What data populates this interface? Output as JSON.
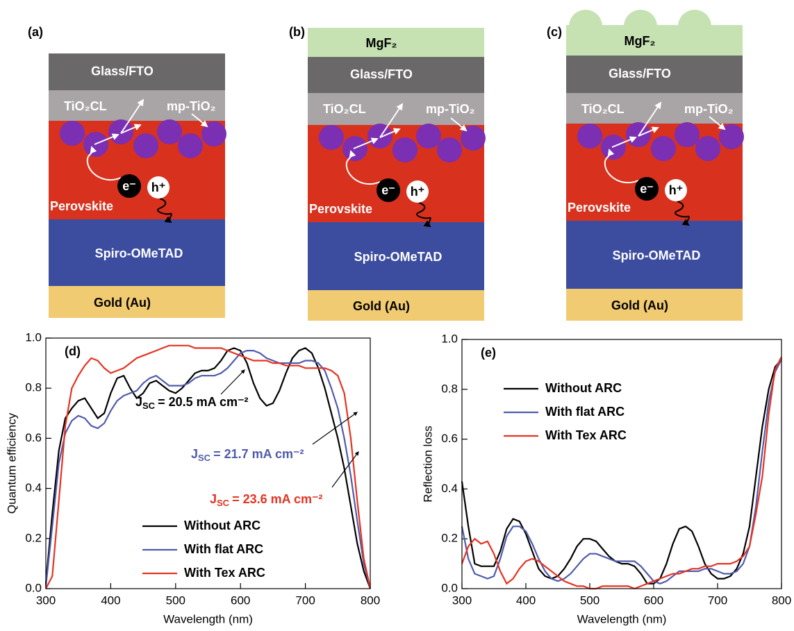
{
  "diagrams": [
    {
      "label": "(a)",
      "glass": "Glass/FTO",
      "compact": "TiO₂CL",
      "mesoporous": "mp-TiO₂",
      "absorber": "Perovskite",
      "htl": "Spiro-OMeTAD",
      "contact": "Gold (Au)",
      "electron": "e⁻",
      "hole": "h⁺"
    },
    {
      "label": "(b)",
      "coating": "MgF₂",
      "glass": "Glass/FTO",
      "compact": "TiO₂CL",
      "mesoporous": "mp-TiO₂",
      "absorber": "Perovskite",
      "htl": "Spiro-OMeTAD",
      "contact": "Gold (Au)",
      "electron": "e⁻",
      "hole": "h⁺"
    },
    {
      "label": "(c)",
      "coating": "MgF₂",
      "glass": "Glass/FTO",
      "compact": "TiO₂CL",
      "mesoporous": "mp-TiO₂",
      "absorber": "Perovskite",
      "htl": "Spiro-OMeTAD",
      "contact": "Gold (Au)",
      "electron": "e⁻",
      "hole": "h⁺"
    }
  ],
  "chart_data": [
    {
      "type": "line",
      "panel_label": "(d)",
      "xlabel": "Wavelength (nm)",
      "ylabel": "Quantum efficiency",
      "x": [
        300,
        310,
        320,
        330,
        340,
        350,
        360,
        370,
        380,
        390,
        400,
        410,
        420,
        430,
        440,
        450,
        460,
        470,
        480,
        490,
        500,
        510,
        520,
        530,
        540,
        550,
        560,
        570,
        580,
        590,
        600,
        610,
        620,
        630,
        640,
        650,
        660,
        670,
        680,
        690,
        700,
        710,
        720,
        730,
        740,
        750,
        760,
        770,
        780,
        790,
        800
      ],
      "series": [
        {
          "name": "Without ARC",
          "color": "#000000",
          "values": [
            0.02,
            0.3,
            0.55,
            0.68,
            0.72,
            0.75,
            0.76,
            0.72,
            0.68,
            0.7,
            0.78,
            0.84,
            0.85,
            0.8,
            0.76,
            0.78,
            0.82,
            0.83,
            0.81,
            0.79,
            0.78,
            0.8,
            0.83,
            0.86,
            0.87,
            0.87,
            0.88,
            0.91,
            0.95,
            0.96,
            0.95,
            0.9,
            0.82,
            0.76,
            0.73,
            0.74,
            0.79,
            0.86,
            0.92,
            0.95,
            0.96,
            0.94,
            0.88,
            0.8,
            0.7,
            0.6,
            0.48,
            0.33,
            0.18,
            0.07,
            0
          ]
        },
        {
          "name": "With flat ARC",
          "color": "#4f5bab",
          "values": [
            0.01,
            0.25,
            0.5,
            0.62,
            0.67,
            0.69,
            0.68,
            0.65,
            0.64,
            0.66,
            0.71,
            0.75,
            0.77,
            0.78,
            0.79,
            0.82,
            0.84,
            0.85,
            0.83,
            0.81,
            0.81,
            0.81,
            0.82,
            0.84,
            0.85,
            0.85,
            0.85,
            0.86,
            0.88,
            0.91,
            0.94,
            0.95,
            0.95,
            0.94,
            0.92,
            0.91,
            0.9,
            0.9,
            0.9,
            0.9,
            0.91,
            0.91,
            0.9,
            0.87,
            0.8,
            0.72,
            0.6,
            0.45,
            0.27,
            0.1,
            0
          ]
        },
        {
          "name": "With Tex ARC",
          "color": "#e53322",
          "values": [
            0,
            0.05,
            0.35,
            0.65,
            0.8,
            0.85,
            0.89,
            0.92,
            0.91,
            0.88,
            0.86,
            0.87,
            0.88,
            0.9,
            0.92,
            0.93,
            0.94,
            0.95,
            0.96,
            0.97,
            0.97,
            0.97,
            0.97,
            0.96,
            0.96,
            0.96,
            0.96,
            0.96,
            0.95,
            0.94,
            0.93,
            0.92,
            0.91,
            0.91,
            0.91,
            0.9,
            0.9,
            0.89,
            0.89,
            0.89,
            0.88,
            0.88,
            0.88,
            0.88,
            0.87,
            0.85,
            0.78,
            0.6,
            0.35,
            0.12,
            0
          ]
        }
      ],
      "xlim": [
        300,
        800
      ],
      "xticks": [
        300,
        400,
        500,
        600,
        700,
        800
      ],
      "ylim": [
        0,
        1
      ],
      "yticks": [
        {
          "value": 0,
          "label": "0.0"
        },
        0.2,
        0.4,
        0.6,
        0.8,
        {
          "value": 1,
          "label": "1.0"
        }
      ],
      "legend": "lower center",
      "annotations": [
        {
          "symbol": "J",
          "subscript": "SC",
          "text": "= 20.5 mA cm⁻²",
          "color": "#000000"
        },
        {
          "symbol": "J",
          "subscript": "SC",
          "text": "= 21.7 mA cm⁻²",
          "color": "#4f5bab"
        },
        {
          "symbol": "J",
          "subscript": "SC",
          "text": "= 23.6 mA cm⁻²",
          "color": "#e53322"
        }
      ]
    },
    {
      "type": "line",
      "panel_label": "(e)",
      "xlabel": "Wavelength (nm)",
      "ylabel": "Reflection loss",
      "x": [
        300,
        310,
        320,
        330,
        340,
        350,
        360,
        370,
        380,
        390,
        400,
        410,
        420,
        430,
        440,
        450,
        460,
        470,
        480,
        490,
        500,
        510,
        520,
        530,
        540,
        550,
        560,
        570,
        580,
        590,
        600,
        610,
        620,
        630,
        640,
        650,
        660,
        670,
        680,
        690,
        700,
        710,
        720,
        730,
        740,
        750,
        760,
        770,
        780,
        790,
        800
      ],
      "series": [
        {
          "name": "Without ARC",
          "color": "#000000",
          "values": [
            0.43,
            0.25,
            0.1,
            0.09,
            0.09,
            0.09,
            0.15,
            0.24,
            0.28,
            0.27,
            0.22,
            0.15,
            0.08,
            0.05,
            0.04,
            0.05,
            0.08,
            0.12,
            0.17,
            0.2,
            0.2,
            0.19,
            0.16,
            0.13,
            0.11,
            0.1,
            0.1,
            0.09,
            0.06,
            0.02,
            0.02,
            0.04,
            0.1,
            0.18,
            0.24,
            0.25,
            0.23,
            0.17,
            0.1,
            0.06,
            0.04,
            0.04,
            0.05,
            0.08,
            0.14,
            0.25,
            0.45,
            0.65,
            0.8,
            0.89,
            0.92
          ]
        },
        {
          "name": "With flat ARC",
          "color": "#4f5bab",
          "values": [
            0.25,
            0.12,
            0.06,
            0.05,
            0.04,
            0.05,
            0.12,
            0.21,
            0.25,
            0.25,
            0.23,
            0.18,
            0.12,
            0.07,
            0.04,
            0.03,
            0.04,
            0.06,
            0.09,
            0.12,
            0.14,
            0.14,
            0.13,
            0.12,
            0.11,
            0.11,
            0.11,
            0.11,
            0.09,
            0.06,
            0.03,
            0.02,
            0.03,
            0.05,
            0.07,
            0.07,
            0.07,
            0.07,
            0.08,
            0.08,
            0.07,
            0.06,
            0.06,
            0.07,
            0.1,
            0.17,
            0.33,
            0.55,
            0.75,
            0.87,
            0.92
          ]
        },
        {
          "name": "With Tex ARC",
          "color": "#e53322",
          "values": [
            0.1,
            0.17,
            0.2,
            0.18,
            0.19,
            0.14,
            0.07,
            0.02,
            0.04,
            0.08,
            0.11,
            0.12,
            0.11,
            0.09,
            0.07,
            0.05,
            0.03,
            0.02,
            0.01,
            0.01,
            0,
            0,
            0.01,
            0.01,
            0.01,
            0.01,
            0.01,
            0,
            0.01,
            0.02,
            0.03,
            0.04,
            0.05,
            0.06,
            0.06,
            0.07,
            0.08,
            0.08,
            0.09,
            0.09,
            0.1,
            0.1,
            0.1,
            0.11,
            0.13,
            0.17,
            0.3,
            0.45,
            0.7,
            0.88,
            0.93
          ]
        }
      ],
      "xlim": [
        300,
        800
      ],
      "xticks": [
        300,
        400,
        500,
        600,
        700,
        800
      ],
      "ylim": [
        0,
        1
      ],
      "yticks": [
        {
          "value": 0,
          "label": "0.0"
        },
        0.2,
        0.4,
        0.6,
        0.8,
        {
          "value": 1,
          "label": "1.0"
        }
      ],
      "legend": "upper left"
    }
  ]
}
